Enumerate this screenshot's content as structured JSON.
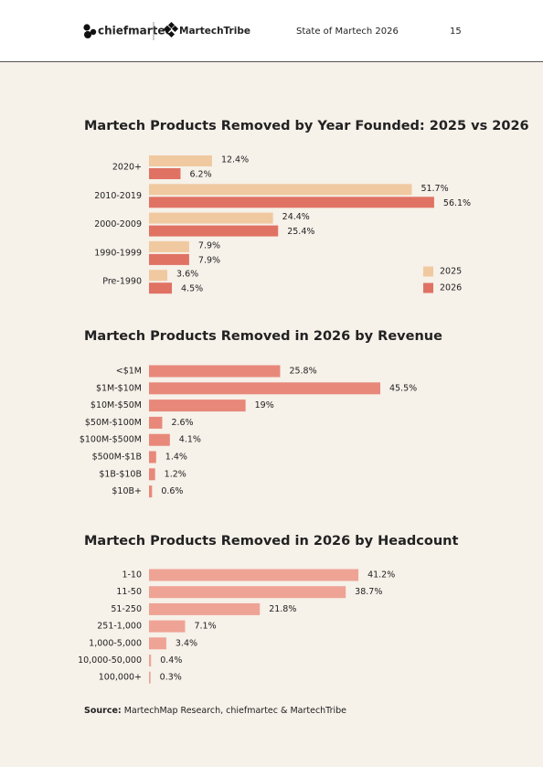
{
  "header": {
    "brand1": "chiefmartec",
    "brand2": "MartechTribe",
    "title": "State of Martech 2026",
    "page": "15"
  },
  "chart_data": [
    {
      "type": "bar",
      "title": "Martech Products Removed by Year Founded: 2025 vs 2026",
      "categories": [
        "2020+",
        "2010-2019",
        "2000-2009",
        "1990-1999",
        "Pre-1990"
      ],
      "series": [
        {
          "name": "2025",
          "color": "#f0c9a0",
          "values": [
            12.4,
            51.7,
            24.4,
            7.9,
            3.6
          ],
          "value_labels": [
            "12.4%",
            "51.7%",
            "24.4%",
            "7.9%",
            "3.6%"
          ]
        },
        {
          "name": "2026",
          "color": "#e07264",
          "values": [
            6.2,
            56.1,
            25.4,
            7.9,
            4.5
          ],
          "value_labels": [
            "6.2%",
            "56.1%",
            "25.4%",
            "7.9%",
            "4.5%"
          ]
        }
      ],
      "legend": "bottom-right"
    },
    {
      "type": "bar",
      "title": "Martech Products Removed in 2026 by Revenue",
      "categories": [
        "<$1M",
        "$1M-$10M",
        "$10M-$50M",
        "$50M-$100M",
        "$100M-$500M",
        "$500M-$1B",
        "$1B-$10B",
        "$10B+"
      ],
      "values": [
        25.8,
        45.5,
        19,
        2.6,
        4.1,
        1.4,
        1.2,
        0.6
      ],
      "value_labels": [
        "25.8%",
        "45.5%",
        "19%",
        "2.6%",
        "4.1%",
        "1.4%",
        "1.2%",
        "0.6%"
      ],
      "color": "#e8887a"
    },
    {
      "type": "bar",
      "title": "Martech Products Removed in 2026 by Headcount",
      "categories": [
        "1-10",
        "11-50",
        "51-250",
        "251-1,000",
        "1,000-5,000",
        "10,000-50,000",
        "100,000+"
      ],
      "values": [
        41.2,
        38.7,
        21.8,
        7.1,
        3.4,
        0.4,
        0.3
      ],
      "value_labels": [
        "41.2%",
        "38.7%",
        "21.8%",
        "7.1%",
        "3.4%",
        "0.4%",
        "0.3%"
      ],
      "color": "#eea395"
    }
  ],
  "source": {
    "label": "Source:",
    "text": "MartechMap Research, chiefmartec & MartechTribe"
  }
}
